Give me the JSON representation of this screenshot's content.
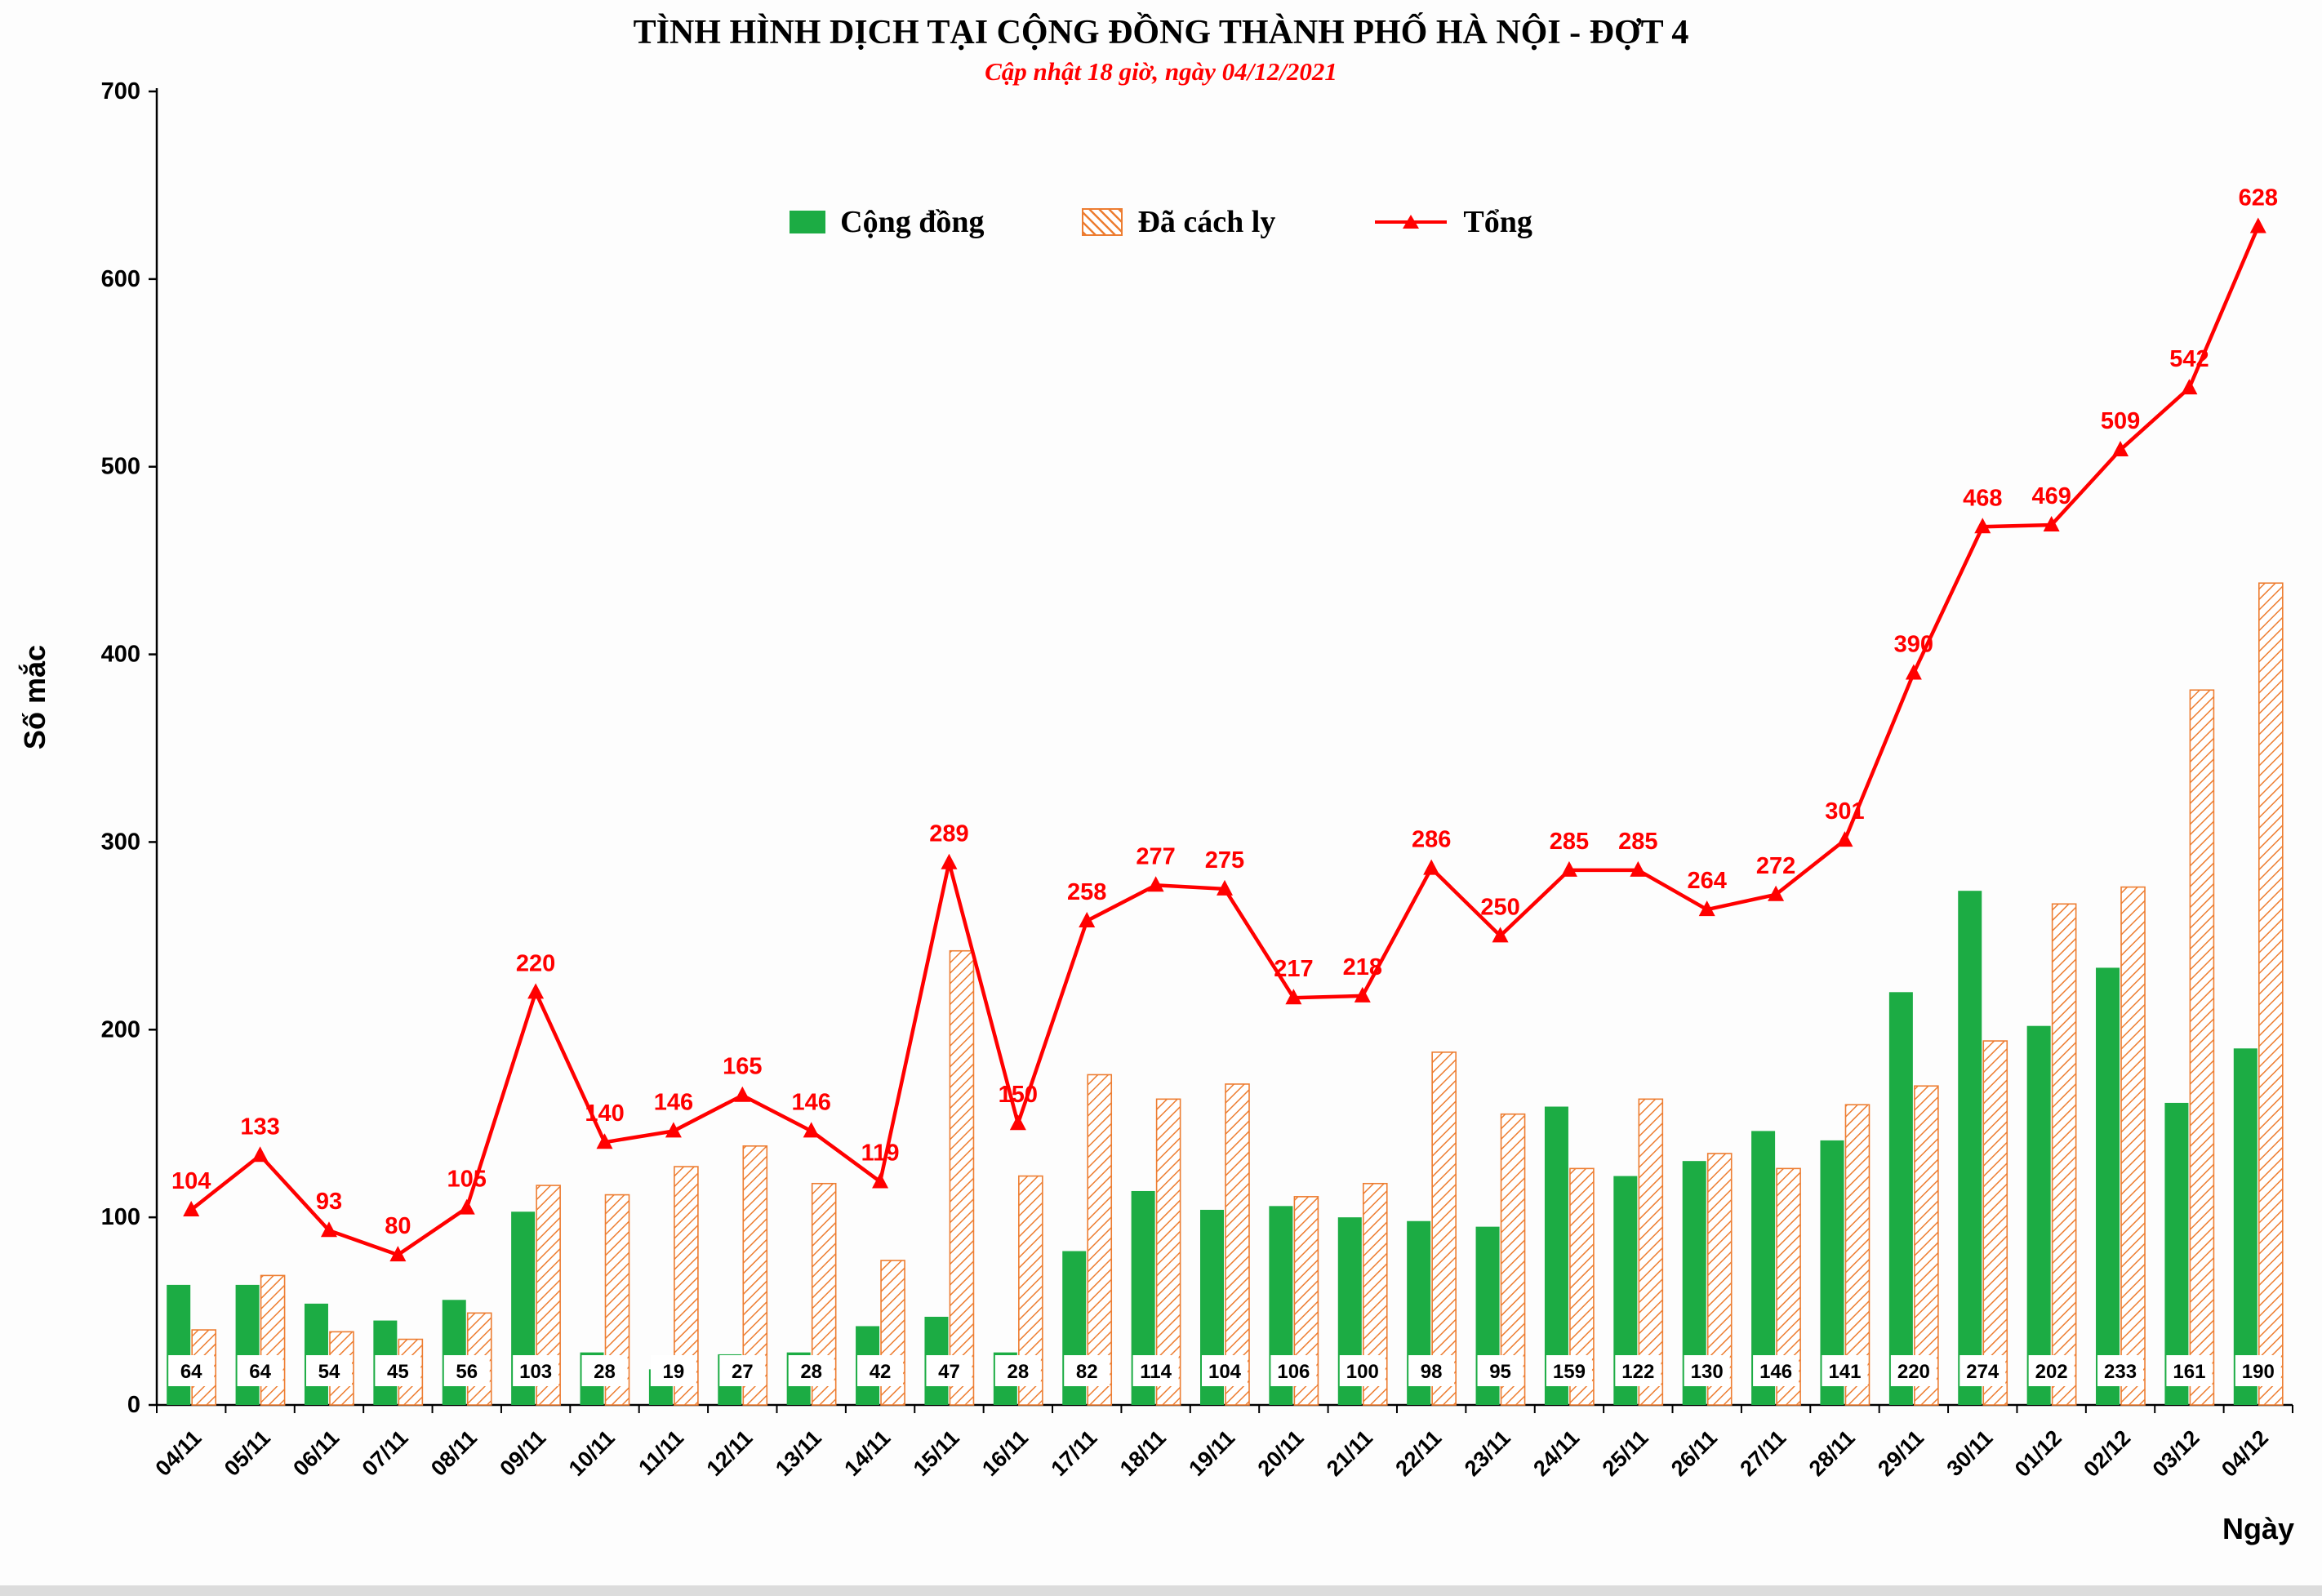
{
  "chart_data": {
    "type": "bar",
    "title": "TÌNH HÌNH DỊCH TẠI CỘNG ĐỒNG THÀNH PHỐ HÀ NỘI - ĐỢT 4",
    "subtitle": "Cập nhật 18 giờ, ngày 04/12/2021",
    "ylabel": "Số mắc",
    "xlabel": "Ngày",
    "ylim": [
      0,
      700
    ],
    "yticks": [
      0,
      100,
      200,
      300,
      400,
      500,
      600,
      700
    ],
    "grid": false,
    "legend_position": "top-center",
    "legend": [
      "Cộng đồng",
      "Đã cách ly",
      "Tổng"
    ],
    "colors": {
      "green": "#1cac44",
      "orange": "#ed7d31",
      "red": "#ff0000"
    },
    "categories": [
      "04/11",
      "05/11",
      "06/11",
      "07/11",
      "08/11",
      "09/11",
      "10/11",
      "11/11",
      "12/11",
      "13/11",
      "14/11",
      "15/11",
      "16/11",
      "17/11",
      "18/11",
      "19/11",
      "20/11",
      "21/11",
      "22/11",
      "23/11",
      "24/11",
      "25/11",
      "26/11",
      "27/11",
      "28/11",
      "29/11",
      "30/11",
      "01/12",
      "02/12",
      "03/12",
      "04/12"
    ],
    "series": [
      {
        "name": "Cộng đồng",
        "kind": "bar",
        "color": "#1cac44",
        "value_labels": "inside-base-white-box",
        "values": [
          64,
          64,
          54,
          45,
          56,
          103,
          28,
          19,
          27,
          28,
          42,
          47,
          28,
          82,
          114,
          104,
          106,
          100,
          98,
          95,
          159,
          122,
          130,
          146,
          141,
          220,
          274,
          202,
          233,
          161,
          190
        ]
      },
      {
        "name": "Đã cách ly",
        "kind": "bar",
        "color": "#ed7d31",
        "pattern": "diagonal-hatch-on-white",
        "value_labels": "none",
        "values": [
          40,
          69,
          39,
          35,
          49,
          117,
          112,
          127,
          138,
          118,
          77,
          242,
          122,
          176,
          163,
          171,
          111,
          118,
          188,
          155,
          126,
          163,
          134,
          126,
          160,
          170,
          194,
          267,
          276,
          381,
          438
        ]
      },
      {
        "name": "Tổng",
        "kind": "line",
        "color": "#ff0000",
        "marker": "triangle",
        "value_labels": "above",
        "values": [
          104,
          133,
          93,
          80,
          105,
          220,
          140,
          146,
          165,
          146,
          119,
          289,
          150,
          258,
          277,
          275,
          217,
          218,
          286,
          250,
          285,
          285,
          264,
          272,
          301,
          390,
          468,
          469,
          509,
          542,
          628
        ]
      }
    ]
  }
}
